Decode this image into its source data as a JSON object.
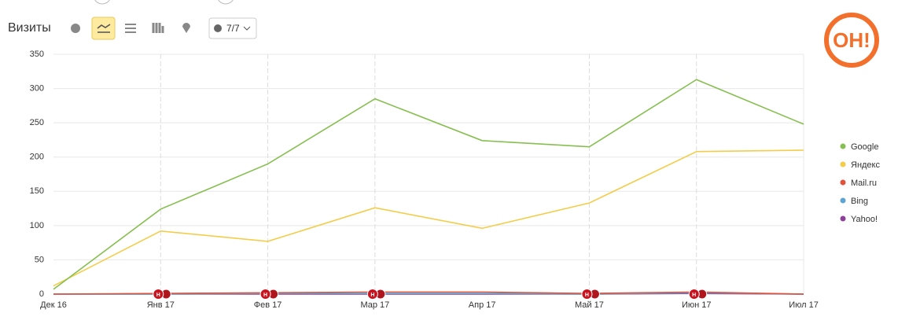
{
  "toolbar": {
    "title": "Визиты",
    "filter": "7/7"
  },
  "logo": "ОН!",
  "chart_data": {
    "type": "line",
    "categories": [
      "Дек 16",
      "Янв 17",
      "Фев 17",
      "Мар 17",
      "Апр 17",
      "Май 17",
      "Июн 17",
      "Июл 17"
    ],
    "series": [
      {
        "name": "Google",
        "color": "#86bf4f",
        "values": [
          7,
          124,
          190,
          285,
          224,
          215,
          313,
          248
        ]
      },
      {
        "name": "Яндекс",
        "color": "#f3cd4a",
        "values": [
          12,
          92,
          77,
          126,
          96,
          133,
          208,
          210
        ]
      },
      {
        "name": "Mail.ru",
        "color": "#e2523a",
        "values": [
          0,
          1,
          2,
          3,
          3,
          1,
          3,
          0
        ]
      },
      {
        "name": "Bing",
        "color": "#5fa4d3",
        "values": [
          0,
          0,
          1,
          1,
          1,
          0,
          2,
          0
        ]
      },
      {
        "name": "Yahoo!",
        "color": "#8e3f9a",
        "values": [
          0,
          0,
          0,
          0,
          0,
          0,
          1,
          0
        ]
      }
    ],
    "annotations": [
      null,
      "Н",
      "Н",
      "Н",
      null,
      "Н",
      "Н",
      null
    ],
    "ylim": [
      0,
      350
    ],
    "yticks": [
      0,
      50,
      100,
      150,
      200,
      250,
      300,
      350
    ],
    "grid": true,
    "legend": "right"
  }
}
